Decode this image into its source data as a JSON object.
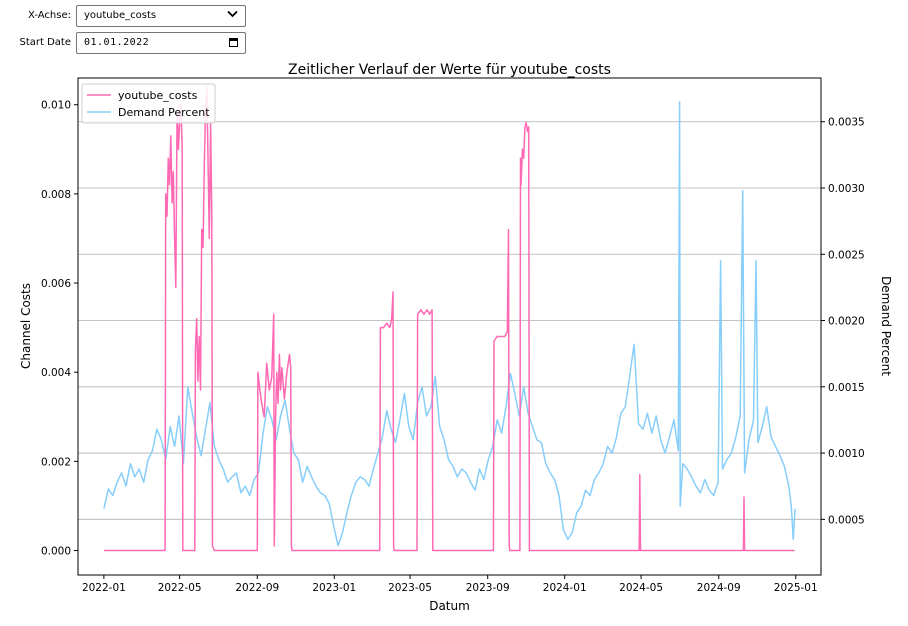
{
  "controls": {
    "x_axis_label": "X-Achse:",
    "x_axis_value": "youtube_costs",
    "start_date_label": "Start Date",
    "start_date_value": "01.01.2022"
  },
  "colors": {
    "youtube_costs": "#ff69b4",
    "demand_percent": "#87cefa",
    "grid": "#b0b0b0"
  },
  "chart_data": {
    "type": "line",
    "title": "Zeitlicher Verlauf der Werte für youtube_costs",
    "xlabel": "Datum",
    "ylabel": "Channel Costs",
    "ylabel_right": "Demand Percent",
    "xlim": [
      "2021-11-21",
      "2025-02-10"
    ],
    "ylim": [
      -0.00055,
      0.0106
    ],
    "ylim_right": [
      8e-05,
      0.00383
    ],
    "x_ticks": [
      "2022-01",
      "2022-05",
      "2022-09",
      "2023-01",
      "2023-05",
      "2023-09",
      "2024-01",
      "2024-05",
      "2024-09",
      "2025-01"
    ],
    "y_ticks": [
      "0.000",
      "0.002",
      "0.004",
      "0.006",
      "0.008",
      "0.010"
    ],
    "y_ticks_right": [
      "0.0005",
      "0.0010",
      "0.0015",
      "0.0020",
      "0.0025",
      "0.0030",
      "0.0035"
    ],
    "grid": "horizontal lines on right axis",
    "legend_position": "top-left",
    "series": [
      {
        "name": "youtube_costs",
        "axis": "left",
        "x": [
          "2022-01-01",
          "2022-04-08",
          "2022-04-09",
          "2022-04-11",
          "2022-04-13",
          "2022-04-15",
          "2022-04-17",
          "2022-04-19",
          "2022-04-21",
          "2022-04-23",
          "2022-04-25",
          "2022-04-27",
          "2022-04-29",
          "2022-05-01",
          "2022-05-03",
          "2022-05-05",
          "2022-05-06",
          "2022-05-25",
          "2022-05-26",
          "2022-05-28",
          "2022-05-30",
          "2022-06-01",
          "2022-06-03",
          "2022-06-05",
          "2022-06-07",
          "2022-06-09",
          "2022-06-11",
          "2022-06-13",
          "2022-06-15",
          "2022-06-17",
          "2022-06-19",
          "2022-06-21",
          "2022-06-22",
          "2022-06-25",
          "2022-09-01",
          "2022-09-02",
          "2022-09-05",
          "2022-09-08",
          "2022-09-12",
          "2022-09-16",
          "2022-09-20",
          "2022-09-24",
          "2022-09-27",
          "2022-09-28",
          "2022-09-30",
          "2022-10-02",
          "2022-10-04",
          "2022-10-06",
          "2022-10-08",
          "2022-10-10",
          "2022-10-14",
          "2022-10-18",
          "2022-10-22",
          "2022-10-24",
          "2022-10-25",
          "2022-10-26",
          "2023-03-14",
          "2023-03-15",
          "2023-03-20",
          "2023-03-25",
          "2023-03-30",
          "2023-04-02",
          "2023-04-04",
          "2023-04-05",
          "2023-04-06",
          "2023-05-12",
          "2023-05-13",
          "2023-05-18",
          "2023-05-23",
          "2023-05-28",
          "2023-06-01",
          "2023-06-05",
          "2023-06-06",
          "2023-09-10",
          "2023-09-11",
          "2023-09-16",
          "2023-09-22",
          "2023-09-28",
          "2023-10-02",
          "2023-10-04",
          "2023-10-05",
          "2023-10-06",
          "2023-10-22",
          "2023-10-23",
          "2023-10-24",
          "2023-10-26",
          "2023-10-28",
          "2023-10-30",
          "2023-11-01",
          "2023-11-03",
          "2023-11-05",
          "2023-11-06",
          "2024-04-28",
          "2024-04-29",
          "2024-04-30",
          "2024-10-10",
          "2024-10-11",
          "2024-10-12",
          "2024-12-30"
        ],
        "values": [
          0,
          0,
          0.008,
          0.0075,
          0.0088,
          0.0082,
          0.0093,
          0.0078,
          0.0085,
          0.007,
          0.0059,
          0.0099,
          0.009,
          0.0096,
          0.01,
          0.009,
          0,
          0,
          0.0045,
          0.0052,
          0.0038,
          0.0048,
          0.0036,
          0.0072,
          0.0068,
          0.0086,
          0.0099,
          0.0104,
          0.0088,
          0.007,
          0.0096,
          0.0075,
          0.0001,
          0,
          0,
          0.004,
          0.0036,
          0.0033,
          0.003,
          0.0042,
          0.0036,
          0.0039,
          0.0053,
          0.0001,
          0.003,
          0.004,
          0.0033,
          0.0044,
          0.0036,
          0.0041,
          0.0034,
          0.004,
          0.0044,
          0.0041,
          0.0001,
          0,
          0,
          0.005,
          0.005,
          0.0051,
          0.005,
          0.0052,
          0.0058,
          0.0001,
          0,
          0,
          0.0053,
          0.0054,
          0.0053,
          0.0054,
          0.0053,
          0.0054,
          0,
          0,
          0.0047,
          0.0048,
          0.0048,
          0.0048,
          0.0049,
          0.0072,
          0.0001,
          0,
          0,
          0.0088,
          0.0082,
          0.009,
          0.0088,
          0.0095,
          0.0096,
          0.0094,
          0.0095,
          0,
          0,
          0.0017,
          0,
          0,
          0.0012,
          0,
          0
        ]
      },
      {
        "name": "Demand Percent",
        "axis": "right",
        "x": [
          "2022-01-01",
          "2022-01-08",
          "2022-01-15",
          "2022-01-22",
          "2022-01-29",
          "2022-02-05",
          "2022-02-12",
          "2022-02-19",
          "2022-02-26",
          "2022-03-05",
          "2022-03-12",
          "2022-03-19",
          "2022-03-26",
          "2022-04-02",
          "2022-04-09",
          "2022-04-16",
          "2022-04-23",
          "2022-04-30",
          "2022-05-07",
          "2022-05-14",
          "2022-05-21",
          "2022-05-28",
          "2022-06-04",
          "2022-06-11",
          "2022-06-18",
          "2022-06-25",
          "2022-07-02",
          "2022-07-09",
          "2022-07-16",
          "2022-07-23",
          "2022-07-30",
          "2022-08-06",
          "2022-08-13",
          "2022-08-20",
          "2022-08-27",
          "2022-09-03",
          "2022-09-10",
          "2022-09-17",
          "2022-09-24",
          "2022-10-01",
          "2022-10-08",
          "2022-10-15",
          "2022-10-22",
          "2022-10-29",
          "2022-11-05",
          "2022-11-12",
          "2022-11-19",
          "2022-11-26",
          "2022-12-03",
          "2022-12-10",
          "2022-12-17",
          "2022-12-24",
          "2022-12-31",
          "2023-01-07",
          "2023-01-14",
          "2023-01-21",
          "2023-01-28",
          "2023-02-04",
          "2023-02-11",
          "2023-02-18",
          "2023-02-25",
          "2023-03-04",
          "2023-03-11",
          "2023-03-18",
          "2023-03-25",
          "2023-04-01",
          "2023-04-08",
          "2023-04-15",
          "2023-04-22",
          "2023-04-29",
          "2023-05-06",
          "2023-05-13",
          "2023-05-20",
          "2023-05-27",
          "2023-06-03",
          "2023-06-10",
          "2023-06-17",
          "2023-06-24",
          "2023-07-01",
          "2023-07-08",
          "2023-07-15",
          "2023-07-22",
          "2023-07-29",
          "2023-08-05",
          "2023-08-12",
          "2023-08-19",
          "2023-08-26",
          "2023-09-02",
          "2023-09-09",
          "2023-09-16",
          "2023-09-23",
          "2023-09-30",
          "2023-10-07",
          "2023-10-14",
          "2023-10-21",
          "2023-10-28",
          "2023-11-04",
          "2023-11-11",
          "2023-11-18",
          "2023-11-25",
          "2023-12-02",
          "2023-12-09",
          "2023-12-16",
          "2023-12-23",
          "2023-12-30",
          "2024-01-06",
          "2024-01-13",
          "2024-01-20",
          "2024-01-27",
          "2024-02-03",
          "2024-02-10",
          "2024-02-17",
          "2024-02-24",
          "2024-03-02",
          "2024-03-09",
          "2024-03-16",
          "2024-03-23",
          "2024-03-30",
          "2024-04-06",
          "2024-04-13",
          "2024-04-20",
          "2024-04-27",
          "2024-05-04",
          "2024-05-11",
          "2024-05-18",
          "2024-05-25",
          "2024-06-01",
          "2024-06-08",
          "2024-06-15",
          "2024-06-22",
          "2024-06-29",
          "2024-07-01",
          "2024-07-02",
          "2024-07-06",
          "2024-07-13",
          "2024-07-20",
          "2024-07-27",
          "2024-08-03",
          "2024-08-10",
          "2024-08-17",
          "2024-08-24",
          "2024-08-31",
          "2024-09-04",
          "2024-09-07",
          "2024-09-14",
          "2024-09-21",
          "2024-09-28",
          "2024-10-05",
          "2024-10-09",
          "2024-10-12",
          "2024-10-19",
          "2024-10-26",
          "2024-10-30",
          "2024-11-02",
          "2024-11-09",
          "2024-11-16",
          "2024-11-23",
          "2024-11-30",
          "2024-12-07",
          "2024-12-14",
          "2024-12-21",
          "2024-12-25",
          "2024-12-28",
          "2024-12-31"
        ],
        "values": [
          0.00058,
          0.00073,
          0.00068,
          0.00078,
          0.00085,
          0.00075,
          0.00092,
          0.00082,
          0.00088,
          0.00078,
          0.00095,
          0.00102,
          0.00118,
          0.0011,
          0.00095,
          0.0012,
          0.00105,
          0.00128,
          0.00092,
          0.0015,
          0.0013,
          0.00112,
          0.00098,
          0.00118,
          0.00138,
          0.00105,
          0.00095,
          0.00088,
          0.00078,
          0.00082,
          0.00085,
          0.0007,
          0.00075,
          0.00068,
          0.0008,
          0.00085,
          0.00115,
          0.00135,
          0.00125,
          0.0011,
          0.00128,
          0.0014,
          0.00118,
          0.001,
          0.00095,
          0.00078,
          0.0009,
          0.00082,
          0.00075,
          0.0007,
          0.00068,
          0.00062,
          0.00045,
          0.0003,
          0.0004,
          0.00055,
          0.00068,
          0.00078,
          0.00082,
          0.0008,
          0.00075,
          0.00088,
          0.001,
          0.00112,
          0.00132,
          0.00118,
          0.00108,
          0.00125,
          0.00145,
          0.0012,
          0.0011,
          0.00138,
          0.0015,
          0.00128,
          0.00135,
          0.00158,
          0.0012,
          0.0011,
          0.00095,
          0.0009,
          0.00082,
          0.00088,
          0.00085,
          0.00078,
          0.00072,
          0.00088,
          0.0008,
          0.00095,
          0.00105,
          0.00125,
          0.00115,
          0.00135,
          0.0016,
          0.00145,
          0.00128,
          0.0015,
          0.0013,
          0.0012,
          0.0011,
          0.00108,
          0.00092,
          0.00085,
          0.0008,
          0.00068,
          0.00042,
          0.00035,
          0.0004,
          0.00055,
          0.0006,
          0.00072,
          0.00068,
          0.0008,
          0.00085,
          0.00092,
          0.00105,
          0.001,
          0.00112,
          0.0013,
          0.00135,
          0.00158,
          0.00182,
          0.00122,
          0.00118,
          0.0013,
          0.00115,
          0.00128,
          0.0011,
          0.001,
          0.00112,
          0.00125,
          0.00102,
          0.00365,
          0.0006,
          0.00092,
          0.00088,
          0.00082,
          0.00075,
          0.0007,
          0.0008,
          0.00072,
          0.00068,
          0.00078,
          0.00245,
          0.00088,
          0.00095,
          0.001,
          0.00112,
          0.00128,
          0.00298,
          0.00085,
          0.0011,
          0.00125,
          0.00245,
          0.00108,
          0.0012,
          0.00135,
          0.00112,
          0.00105,
          0.00098,
          0.0009,
          0.00075,
          0.0006,
          0.00035,
          0.00058
        ]
      }
    ]
  }
}
